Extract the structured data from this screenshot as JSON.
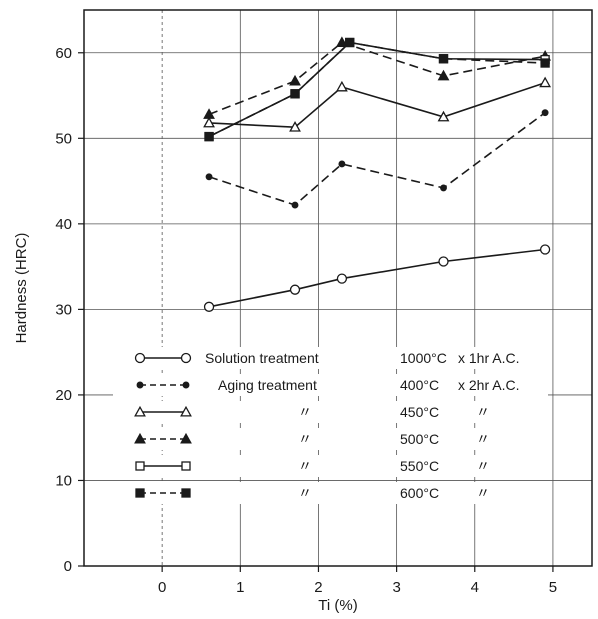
{
  "chart_data": {
    "type": "line",
    "xlabel": "Ti (%)",
    "ylabel": "Hardness  (HRC)",
    "xlim": [
      -1,
      5.5
    ],
    "ylim": [
      0,
      65
    ],
    "x_ticks": [
      "0",
      "1",
      "2",
      "3",
      "4",
      "5"
    ],
    "y_ticks": [
      "0",
      "10",
      "20",
      "30",
      "40",
      "50",
      "60"
    ],
    "grid": true,
    "legend_position": "lower-center",
    "series": [
      {
        "name": "Solution treatment 1000°C x 1hr A.C.",
        "marker": "circle-open",
        "line": "solid",
        "x": [
          0.6,
          1.7,
          2.3,
          3.6,
          4.9
        ],
        "y": [
          30.3,
          32.3,
          33.6,
          35.6,
          37.0
        ]
      },
      {
        "name": "Aging treatment 400°C x 2hr A.C.",
        "marker": "circle-filled",
        "line": "dashed",
        "x": [
          0.6,
          1.7,
          2.3,
          3.6,
          4.9
        ],
        "y": [
          45.5,
          42.2,
          47.0,
          44.2,
          53.0
        ]
      },
      {
        "name": "450°C",
        "marker": "triangle-open",
        "line": "solid",
        "x": [
          0.6,
          1.7,
          2.3,
          3.6,
          4.9
        ],
        "y": [
          51.8,
          51.3,
          56.0,
          52.5,
          56.5
        ]
      },
      {
        "name": "500°C",
        "marker": "triangle-filled",
        "line": "dashed",
        "x": [
          0.6,
          1.7,
          2.3,
          3.6,
          4.9
        ],
        "y": [
          52.8,
          56.7,
          61.2,
          57.3,
          59.6
        ]
      },
      {
        "name": "550°C",
        "marker": "square-open",
        "line": "solid",
        "x": [
          0.6,
          1.7,
          2.4,
          3.6,
          4.9
        ],
        "y": [
          50.2,
          55.2,
          61.2,
          59.3,
          59.2
        ]
      },
      {
        "name": "600°C",
        "marker": "square-filled",
        "line": "dashed",
        "x": [
          0.6,
          1.7,
          2.4,
          3.6,
          4.9
        ],
        "y": [
          50.2,
          55.2,
          61.2,
          59.3,
          58.8
        ]
      }
    ]
  },
  "legend": [
    {
      "marker": "circle-open",
      "line": "solid",
      "label": "Solution treatment",
      "temp": "1000°C",
      "time": "x 1hr  A.C."
    },
    {
      "marker": "circle-filled",
      "line": "dashed",
      "label": "Aging  treatment",
      "temp": "400°C",
      "time": "x 2hr  A.C."
    },
    {
      "marker": "triangle-open",
      "line": "solid",
      "label": "〃",
      "temp": "450°C",
      "time": "〃"
    },
    {
      "marker": "triangle-filled",
      "line": "dashed",
      "label": "〃",
      "temp": "500°C",
      "time": "〃"
    },
    {
      "marker": "square-open",
      "line": "solid",
      "label": "〃",
      "temp": "550°C",
      "time": "〃"
    },
    {
      "marker": "square-filled",
      "line": "dashed",
      "label": "〃",
      "temp": "600°C",
      "time": "〃"
    }
  ]
}
